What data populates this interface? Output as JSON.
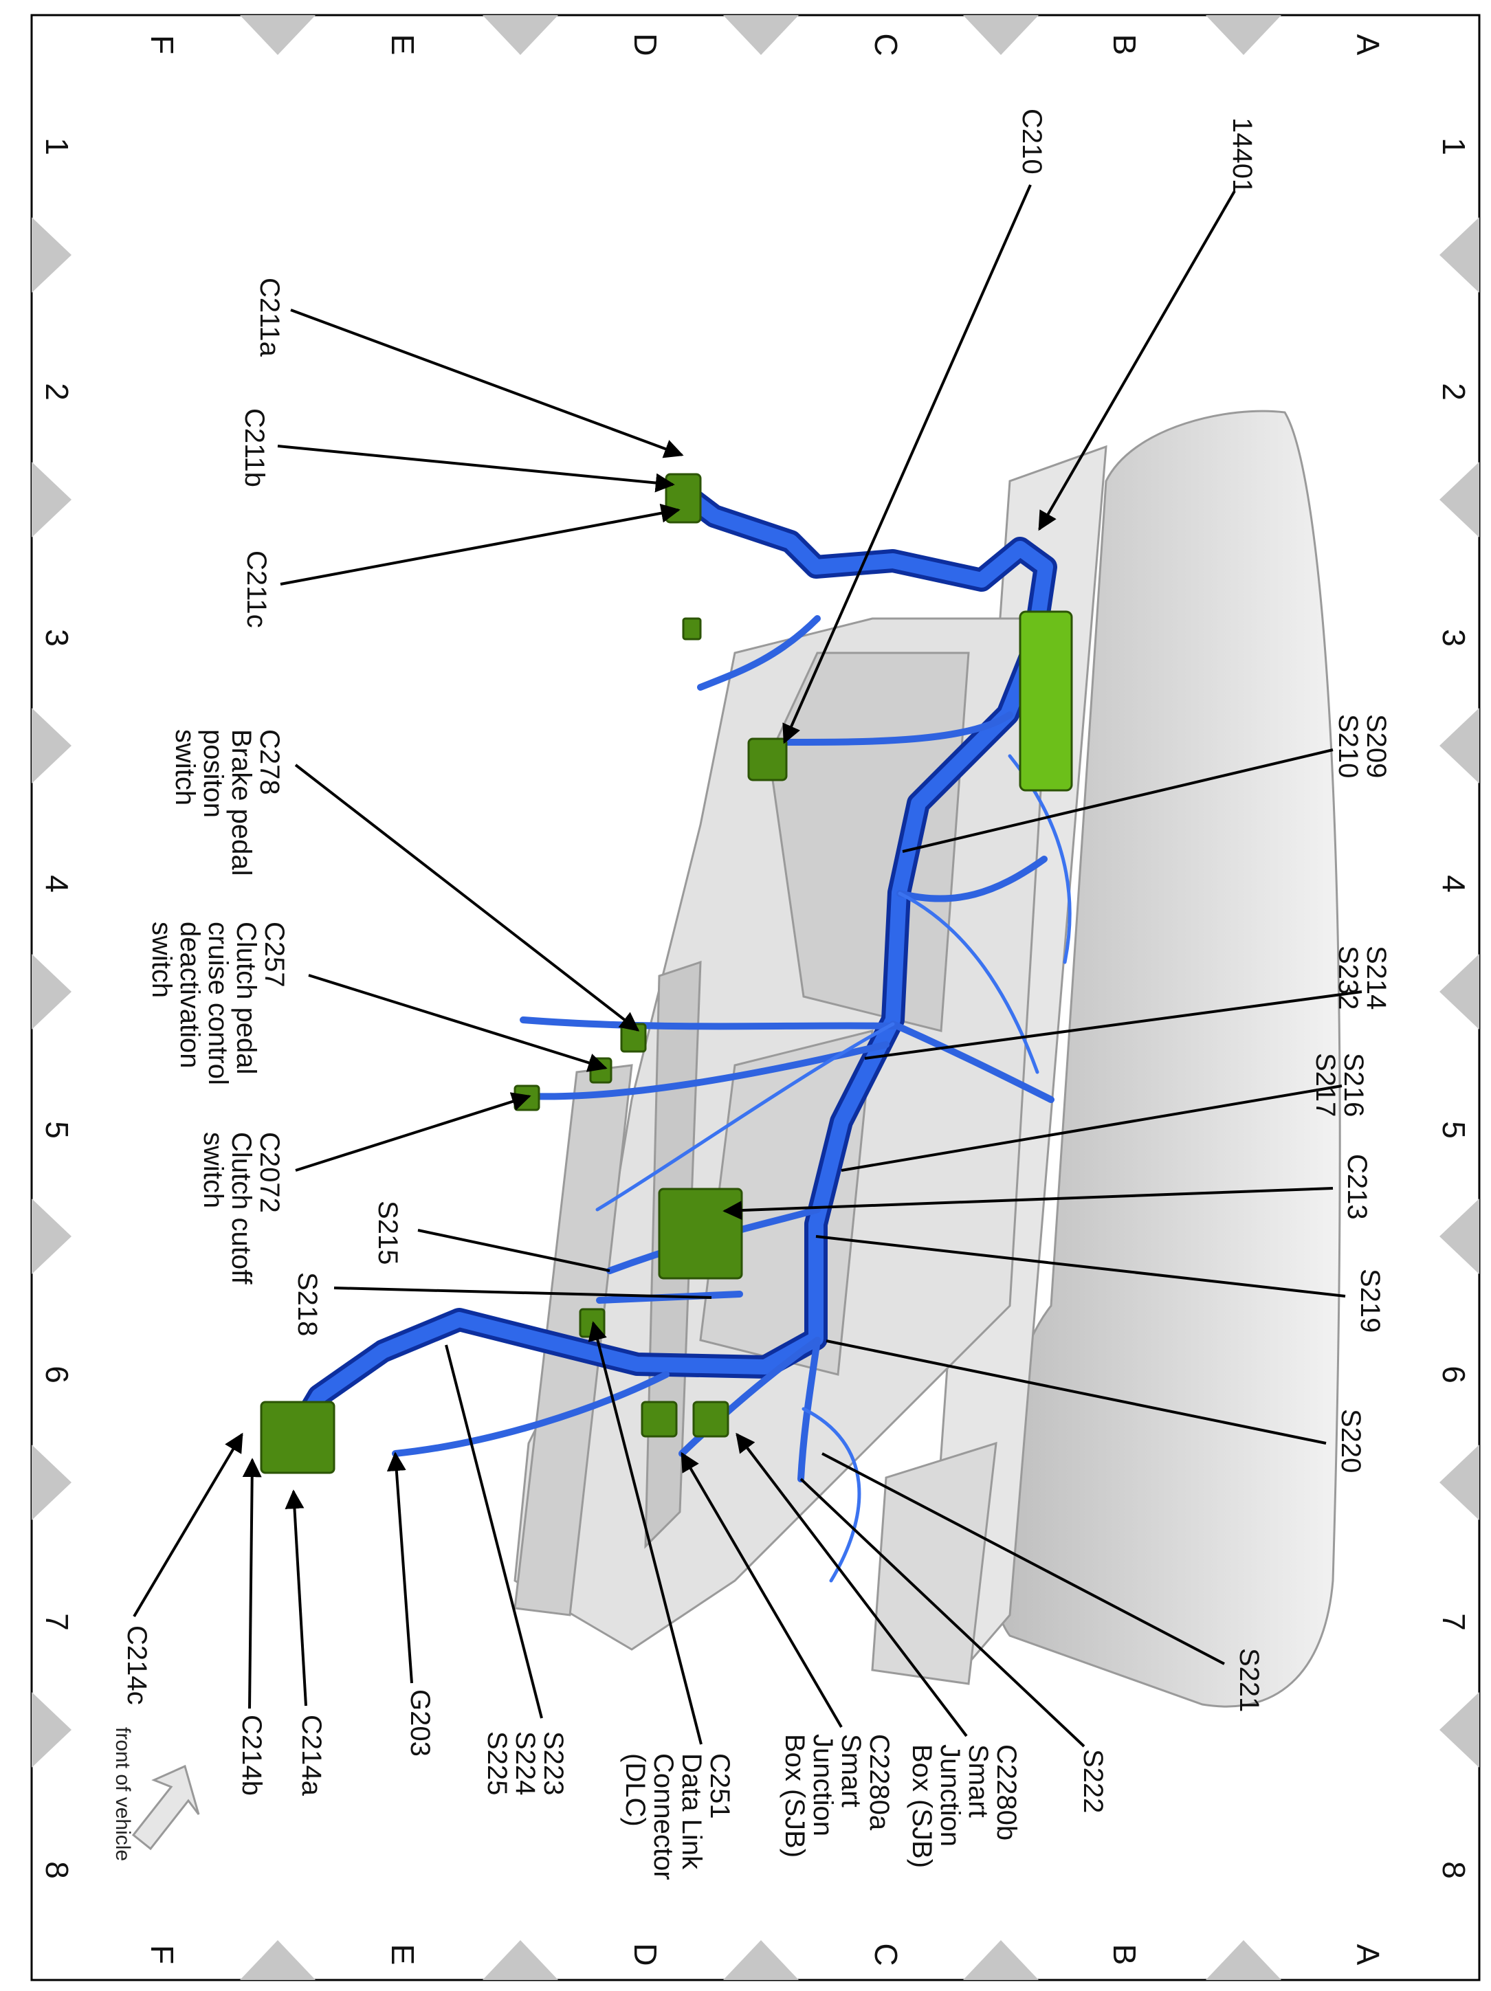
{
  "grid": {
    "rows": [
      "A",
      "B",
      "C",
      "D",
      "E",
      "F"
    ],
    "columns": [
      "1",
      "2",
      "3",
      "4",
      "5",
      "6",
      "7",
      "8"
    ]
  },
  "colors": {
    "harness": "#1f4fd6",
    "connector": "#4d8a12",
    "structure": "#d9d9d9",
    "grid_marker": "#c6c6c6"
  },
  "labels": [
    {
      "id": "14401",
      "lines": [
        "14401"
      ]
    },
    {
      "id": "C210",
      "lines": [
        "C210"
      ]
    },
    {
      "id": "C211a",
      "lines": [
        "C211a"
      ]
    },
    {
      "id": "C211b",
      "lines": [
        "C211b"
      ]
    },
    {
      "id": "C211c",
      "lines": [
        "C211c"
      ]
    },
    {
      "id": "C278",
      "lines": [
        "C278",
        "Brake pedal",
        "positon",
        "switch"
      ]
    },
    {
      "id": "C257",
      "lines": [
        "C257",
        "Clutch pedal",
        "cruise control",
        "deactivation",
        "switch"
      ]
    },
    {
      "id": "C2072",
      "lines": [
        "C2072",
        "Clutch cutoff",
        "switch"
      ]
    },
    {
      "id": "S215",
      "lines": [
        "S215"
      ]
    },
    {
      "id": "S218",
      "lines": [
        "S218"
      ]
    },
    {
      "id": "S223",
      "lines": [
        "S223",
        "S224",
        "S225"
      ]
    },
    {
      "id": "G203",
      "lines": [
        "G203"
      ]
    },
    {
      "id": "C214a",
      "lines": [
        "C214a"
      ]
    },
    {
      "id": "C214b",
      "lines": [
        "C214b"
      ]
    },
    {
      "id": "C214c",
      "lines": [
        "C214c"
      ]
    },
    {
      "id": "C251",
      "lines": [
        "C251",
        "Data Link",
        "Connector",
        "(DLC)"
      ]
    },
    {
      "id": "C2280a",
      "lines": [
        "C2280a",
        "Smart",
        "Junction",
        "Box (SJB)"
      ]
    },
    {
      "id": "C2280b",
      "lines": [
        "C2280b",
        "Smart",
        "Junction",
        "Box (SJB)"
      ]
    },
    {
      "id": "S222",
      "lines": [
        "S222"
      ]
    },
    {
      "id": "S221",
      "lines": [
        "S221"
      ]
    },
    {
      "id": "S220",
      "lines": [
        "S220"
      ]
    },
    {
      "id": "S219",
      "lines": [
        "S219"
      ]
    },
    {
      "id": "C213",
      "lines": [
        "C213"
      ]
    },
    {
      "id": "S216",
      "lines": [
        "S216",
        "S217"
      ]
    },
    {
      "id": "S214",
      "lines": [
        "S214",
        "S232"
      ]
    },
    {
      "id": "S209",
      "lines": [
        "S209",
        "S210"
      ]
    }
  ],
  "orientation_note": "front of vehicle",
  "orientation_icon": "arrow-icon"
}
